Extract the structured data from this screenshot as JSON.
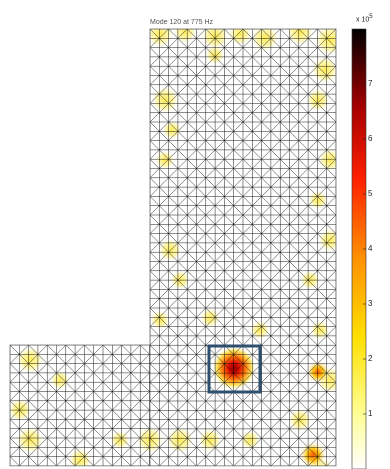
{
  "chart_data": {
    "type": "heatmap",
    "title": "Mode 120 at 775 Hz",
    "mesh": {
      "cols": 19,
      "rows": 22,
      "regions": [
        {
          "cols": [
            0,
            19
          ],
          "rows": [
            0,
            22
          ]
        },
        {
          "cols": [
            0,
            19
          ],
          "rows": [
            12,
            22
          ],
          "lower_extension_cols": [
            -7,
            0
          ]
        }
      ]
    },
    "colorbar": {
      "colormap": "hot-reversed",
      "min": 0,
      "max": 800000,
      "exponent_label": "x 10",
      "exponent": "5",
      "ticks": [
        "1",
        "2",
        "3",
        "4",
        "5",
        "6",
        "7"
      ],
      "tick_values": [
        100000,
        200000,
        300000,
        400000,
        500000,
        600000,
        700000
      ]
    },
    "highlight_box": {
      "color": "#2f4f6f",
      "label": ""
    },
    "peak_region": "lower-right of inner corner"
  }
}
